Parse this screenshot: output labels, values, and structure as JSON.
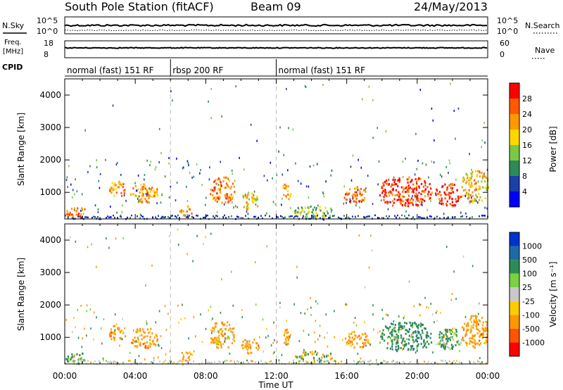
{
  "header": {
    "station": "South Pole Station (fitACF)",
    "beam": "Beam 09",
    "date": "24/May/2013"
  },
  "top_labels": {
    "nsky": "N.Sky",
    "freq_line1": "Freq.",
    "freq_line2": "[MHz]",
    "cpid": "CPID",
    "nsearch": "N.Search",
    "nave": "Nave"
  },
  "top_ticks": {
    "nsky_top": "10^5",
    "nsky_bottom": "10^0",
    "freq_top": "18",
    "freq_bottom": "8",
    "nave_top": "60",
    "nave_bottom": "0"
  },
  "cpid_segments": [
    {
      "label": "normal (fast) 151 RF",
      "start_h": 0,
      "end_h": 6
    },
    {
      "label": "rbsp 200 RF",
      "start_h": 6,
      "end_h": 12
    },
    {
      "label": "normal (fast) 151 RF",
      "start_h": 12,
      "end_h": 24
    }
  ],
  "axes": {
    "xlabel": "Time UT",
    "x_ticks": [
      "00:00",
      "04:00",
      "08:00",
      "12:00",
      "16:00",
      "20:00",
      "00:00"
    ],
    "ylabel": "Slant Range [km]",
    "y_ticks": [
      "1000",
      "2000",
      "3000",
      "4000"
    ]
  },
  "power_scale": {
    "label": "Power [dB]",
    "ticks": [
      "4",
      "8",
      "12",
      "16",
      "20",
      "24",
      "28"
    ],
    "colors": [
      "#0000ff",
      "#1c3fa8",
      "#2e8b57",
      "#7ac943",
      "#ffd700",
      "#ff9900",
      "#ff5a00",
      "#ff0000"
    ]
  },
  "velocity_scale": {
    "label": "Velocity [m s⁻¹]",
    "ticks": [
      "1000",
      "500",
      "100",
      "25",
      "-25",
      "-100",
      "-500",
      "-1000"
    ],
    "colors": [
      "#0033cc",
      "#1e6aa8",
      "#2e8b57",
      "#7bd044",
      "#c8c8c8",
      "#ffcc00",
      "#ff9900",
      "#ff5500",
      "#ff0000"
    ]
  },
  "chart_data": [
    {
      "type": "heatmap",
      "title": "South Pole Station (fitACF) Beam 09 24/May/2013",
      "xlabel": "Time UT",
      "ylabel": "Slant Range [km]",
      "xlim": [
        0,
        24
      ],
      "ylim": [
        180,
        4500
      ],
      "quantity": "Power [dB]",
      "zlim": [
        0,
        30
      ],
      "features": [
        {
          "t_start": 0.0,
          "t_end": 1.3,
          "r_start": 200,
          "r_end": 550,
          "value": 26
        },
        {
          "t_start": 2.5,
          "t_end": 3.4,
          "r_start": 900,
          "r_end": 1400,
          "value": 22
        },
        {
          "t_start": 3.7,
          "t_end": 5.3,
          "r_start": 700,
          "r_end": 1300,
          "value": 22
        },
        {
          "t_start": 6.5,
          "t_end": 7.2,
          "r_start": 300,
          "r_end": 600,
          "value": 24
        },
        {
          "t_start": 8.2,
          "t_end": 9.6,
          "r_start": 700,
          "r_end": 1500,
          "value": 24
        },
        {
          "t_start": 10.0,
          "t_end": 11.0,
          "r_start": 500,
          "r_end": 1000,
          "value": 20
        },
        {
          "t_start": 12.3,
          "t_end": 12.8,
          "r_start": 800,
          "r_end": 1300,
          "value": 22
        },
        {
          "t_start": 13.0,
          "t_end": 15.2,
          "r_start": 250,
          "r_end": 600,
          "value": 14
        },
        {
          "t_start": 15.8,
          "t_end": 17.2,
          "r_start": 700,
          "r_end": 1200,
          "value": 24
        },
        {
          "t_start": 17.8,
          "t_end": 20.8,
          "r_start": 600,
          "r_end": 1500,
          "value": 28
        },
        {
          "t_start": 21.0,
          "t_end": 22.5,
          "r_start": 600,
          "r_end": 1300,
          "value": 28
        },
        {
          "t_start": 22.5,
          "t_end": 24.0,
          "r_start": 700,
          "r_end": 1700,
          "value": 20
        }
      ]
    },
    {
      "type": "heatmap",
      "xlabel": "Time UT",
      "ylabel": "Slant Range [km]",
      "xlim": [
        0,
        24
      ],
      "ylim": [
        180,
        4500
      ],
      "quantity": "Velocity [m s⁻¹]",
      "zlim": [
        -1000,
        1000
      ],
      "features": [
        {
          "t_start": 0.0,
          "t_end": 1.3,
          "r_start": 200,
          "r_end": 550,
          "value": 100
        },
        {
          "t_start": 2.5,
          "t_end": 3.4,
          "r_start": 900,
          "r_end": 1400,
          "value": -300
        },
        {
          "t_start": 3.7,
          "t_end": 5.3,
          "r_start": 700,
          "r_end": 1300,
          "value": -300
        },
        {
          "t_start": 6.5,
          "t_end": 7.2,
          "r_start": 300,
          "r_end": 600,
          "value": -300
        },
        {
          "t_start": 8.2,
          "t_end": 9.6,
          "r_start": 700,
          "r_end": 1500,
          "value": -200
        },
        {
          "t_start": 10.0,
          "t_end": 11.0,
          "r_start": 500,
          "r_end": 1000,
          "value": -300
        },
        {
          "t_start": 12.3,
          "t_end": 12.8,
          "r_start": 800,
          "r_end": 1300,
          "value": -300
        },
        {
          "t_start": 13.0,
          "t_end": 15.2,
          "r_start": 250,
          "r_end": 600,
          "value": 0
        },
        {
          "t_start": 15.8,
          "t_end": 17.2,
          "r_start": 700,
          "r_end": 1200,
          "value": -300
        },
        {
          "t_start": 17.8,
          "t_end": 20.8,
          "r_start": 600,
          "r_end": 1500,
          "value": 300
        },
        {
          "t_start": 21.0,
          "t_end": 22.5,
          "r_start": 600,
          "r_end": 1300,
          "value": 200
        },
        {
          "t_start": 22.5,
          "t_end": 24.0,
          "r_start": 700,
          "r_end": 1700,
          "value": -300
        }
      ]
    }
  ]
}
